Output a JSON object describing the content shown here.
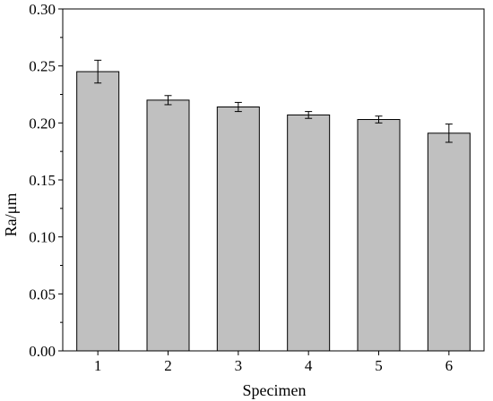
{
  "chart_data": {
    "type": "bar",
    "xlabel": "Specimen",
    "ylabel": "Ra/μm",
    "categories": [
      "1",
      "2",
      "3",
      "4",
      "5",
      "6"
    ],
    "values": [
      0.245,
      0.22,
      0.214,
      0.207,
      0.203,
      0.191
    ],
    "errors": [
      0.01,
      0.004,
      0.004,
      0.003,
      0.003,
      0.008
    ],
    "ylim": [
      0.0,
      0.3
    ],
    "yticks": [
      "0.00",
      "0.05",
      "0.10",
      "0.15",
      "0.20",
      "0.25",
      "0.30"
    ],
    "grid": false,
    "legend": "none",
    "bar_color": "#c0c0c0",
    "edge_color": "#000000"
  }
}
